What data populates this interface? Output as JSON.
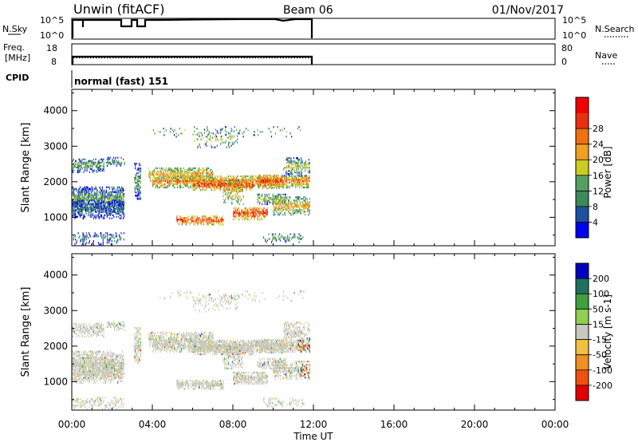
{
  "header": {
    "station": "Unwin (fitACF)",
    "beam": "Beam 06",
    "date": "01/Nov/2017"
  },
  "panels": {
    "nsky": {
      "label": "N.Sky",
      "tick_top": "10^5",
      "tick_bottom": "10^0",
      "right_label": "N.Search",
      "right_tick_top": "10^5",
      "right_tick_bottom": "10^0"
    },
    "freq": {
      "label_line1": "Freq.",
      "label_line2": "[MHz]",
      "tick_top": "18",
      "tick_bottom": "8",
      "right_label": "Nave",
      "right_tick_top": "80",
      "right_tick_bottom": "0"
    },
    "cpid": {
      "label": "CPID",
      "value": "normal (fast) 151"
    }
  },
  "colors": {
    "power": [
      "#0000f0",
      "#2050a0",
      "#3a8a5a",
      "#55a060",
      "#cccc20",
      "#f0a020",
      "#f07010",
      "#e83010",
      "#f00000"
    ],
    "velocity": [
      "#e00000",
      "#f05010",
      "#f09020",
      "#f0c040",
      "#c8c8c0",
      "#90d050",
      "#40a040",
      "#207060",
      "#0000c0"
    ]
  },
  "chart_data": [
    {
      "type": "heatmap",
      "title": "Power",
      "ylabel": "Slant Range [km]",
      "xlabel": "Time UT",
      "x_ticks": [
        "00:00",
        "04:00",
        "08:00",
        "12:00",
        "16:00",
        "20:00",
        "00:00"
      ],
      "x_range_hours": [
        0,
        24
      ],
      "y_ticks": [
        1000,
        2000,
        3000,
        4000
      ],
      "ylim": [
        200,
        4600
      ],
      "colorbar": {
        "label": "Power [dB]",
        "ticks": [
          "4",
          "8",
          "12",
          "16",
          "20",
          "24",
          "28"
        ],
        "range": [
          0,
          32
        ]
      },
      "data_coverage_hours": [
        0,
        12
      ]
    },
    {
      "type": "heatmap",
      "title": "Velocity",
      "ylabel": "Slant Range [km]",
      "xlabel": "Time UT",
      "x_ticks": [
        "00:00",
        "04:00",
        "08:00",
        "12:00",
        "16:00",
        "20:00",
        "00:00"
      ],
      "x_range_hours": [
        0,
        24
      ],
      "y_ticks": [
        1000,
        2000,
        3000,
        4000
      ],
      "ylim": [
        200,
        4600
      ],
      "colorbar": {
        "label": "Velocity [m s-1]",
        "ticks": [
          "200",
          "100",
          "50",
          "15",
          "-15",
          "-50",
          "-100",
          "-200"
        ]
      },
      "data_coverage_hours": [
        0,
        12
      ]
    }
  ]
}
